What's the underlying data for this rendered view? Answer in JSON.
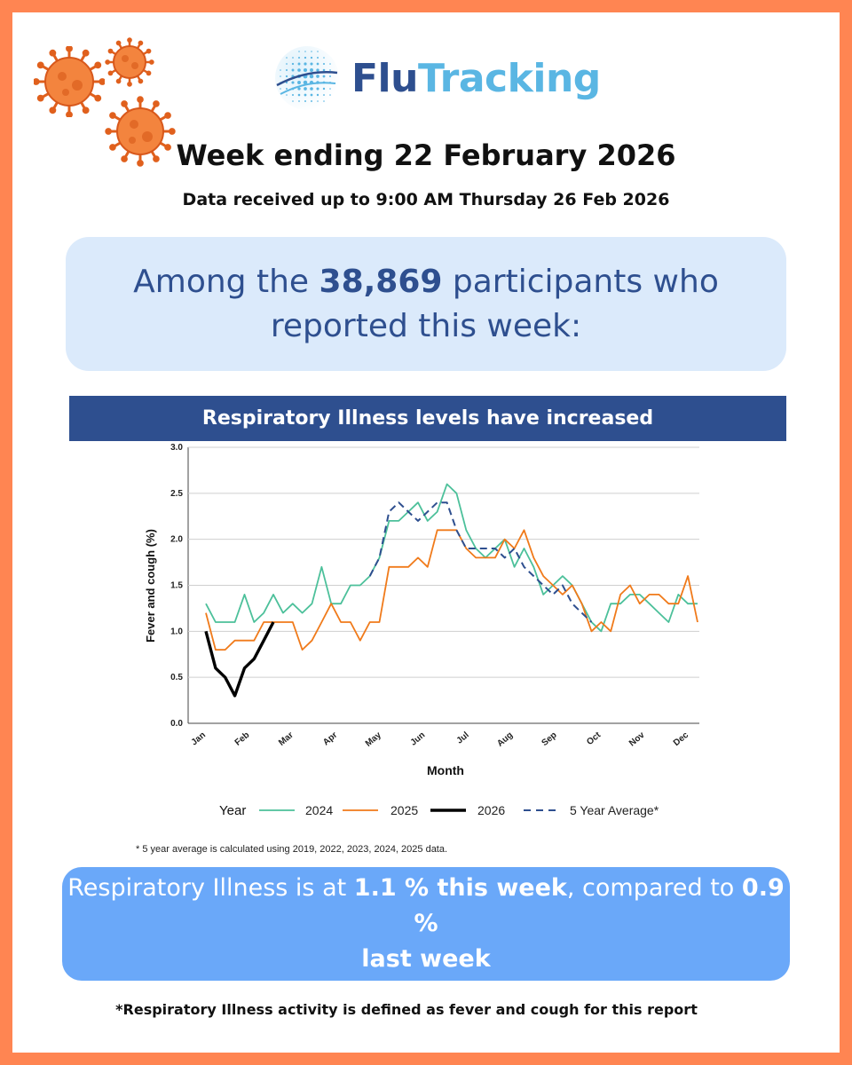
{
  "logo": {
    "part1": "Flu",
    "part2": "Tracking"
  },
  "header": {
    "week_ending": "Week ending 22 February 2026",
    "data_received": "Data received up to 9:00 AM Thursday 26 Feb 2026"
  },
  "participants": {
    "prefix": "Among the",
    "count": "38,869",
    "suffix_line1": "participants who",
    "line2": "reported this week:"
  },
  "banner": {
    "text": "Respiratory Illness levels have increased"
  },
  "chart_footnote": "* 5 year average is calculated using 2019, 2022, 2023, 2024, 2025 data.",
  "result": {
    "part1": "Respiratory Illness is at ",
    "this_week": "1.1 % this week",
    "part2": ", compared to ",
    "last_week": "0.9 %",
    "line2": "last week"
  },
  "definition": "*Respiratory Illness activity is defined as fever and cough for this report",
  "colors": {
    "frame": "#ff8552",
    "navy": "#2e4f8f",
    "light_blue_box": "#dbeafb",
    "result_box": "#6aa8f9",
    "series_2024": "#4cc09a",
    "series_2025": "#f07a1a",
    "series_2026": "#000000",
    "series_avg": "#2e4f8f"
  },
  "chart_data": {
    "type": "line",
    "xlabel": "Month",
    "ylabel": "Fever and cough (%)",
    "ylim": [
      0,
      3.0
    ],
    "yticks": [
      "0.0",
      "0.5",
      "1.0",
      "1.5",
      "2.0",
      "2.5",
      "3.0"
    ],
    "xticks": [
      "Jan",
      "Feb",
      "Mar",
      "Apr",
      "May",
      "Jun",
      "Jul",
      "Aug",
      "Sep",
      "Oct",
      "Nov",
      "Dec"
    ],
    "x_unit": "week of year",
    "grid": "horizontal",
    "legend_title": "Year",
    "legend_position": "bottom",
    "series": [
      {
        "name": "2024",
        "style": "solid",
        "values": [
          1.3,
          1.1,
          1.1,
          1.1,
          1.4,
          1.1,
          1.2,
          1.4,
          1.2,
          1.3,
          1.2,
          1.3,
          1.7,
          1.3,
          1.3,
          1.5,
          1.5,
          1.6,
          1.8,
          2.2,
          2.2,
          2.3,
          2.4,
          2.2,
          2.3,
          2.6,
          2.5,
          2.1,
          1.9,
          1.8,
          1.9,
          2.0,
          1.7,
          1.9,
          1.7,
          1.4,
          1.5,
          1.6,
          1.5,
          1.3,
          1.1,
          1.0,
          1.3,
          1.3,
          1.4,
          1.4,
          1.3,
          1.2,
          1.1,
          1.4,
          1.3,
          1.3
        ]
      },
      {
        "name": "2025",
        "style": "solid",
        "values": [
          1.2,
          0.8,
          0.8,
          0.9,
          0.9,
          0.9,
          1.1,
          1.1,
          1.1,
          1.1,
          0.8,
          0.9,
          1.1,
          1.3,
          1.1,
          1.1,
          0.9,
          1.1,
          1.1,
          1.7,
          1.7,
          1.7,
          1.8,
          1.7,
          2.1,
          2.1,
          2.1,
          1.9,
          1.8,
          1.8,
          1.8,
          2.0,
          1.9,
          2.1,
          1.8,
          1.6,
          1.5,
          1.4,
          1.5,
          1.3,
          1.0,
          1.1,
          1.0,
          1.4,
          1.5,
          1.3,
          1.4,
          1.4,
          1.3,
          1.3,
          1.6,
          1.1
        ]
      },
      {
        "name": "2026",
        "style": "solid",
        "values": [
          1.0,
          0.6,
          0.5,
          0.3,
          0.6,
          0.7,
          0.9,
          1.1
        ]
      },
      {
        "name": "5 Year Average*",
        "style": "dashed",
        "start_week": 17,
        "values": [
          1.6,
          1.8,
          2.3,
          2.4,
          2.3,
          2.2,
          2.3,
          2.4,
          2.4,
          2.1,
          1.9,
          1.9,
          1.9,
          1.9,
          1.8,
          1.9,
          1.7,
          1.6,
          1.5,
          1.4,
          1.5,
          1.3,
          1.2,
          1.1
        ]
      }
    ]
  }
}
